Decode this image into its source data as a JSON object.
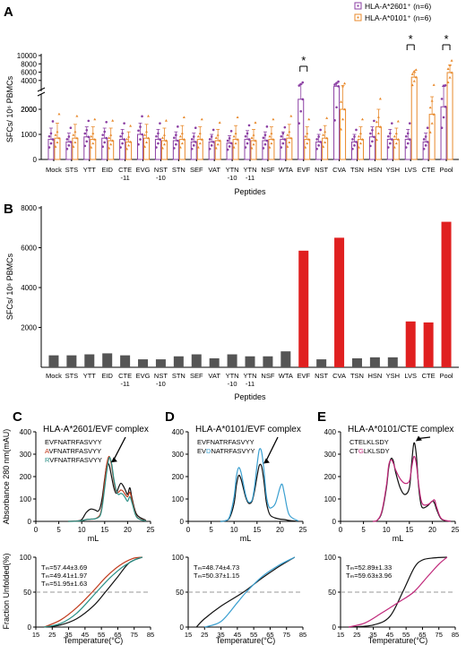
{
  "chart_data": [
    {
      "panel": "A",
      "type": "bar",
      "ylabel": "SFCs/ 10⁶ PBMCs",
      "xlabel": "Peptides",
      "yticks_lower": [
        "0",
        "1000",
        "2000"
      ],
      "yticks_upper": [
        "2000",
        "4000",
        "6000",
        "8000",
        "10000"
      ],
      "y_axis_break": [
        2500,
        1800
      ],
      "categories": [
        "Mock",
        "STS",
        "YTT",
        "EID",
        "CTE-11",
        "EVG",
        "NST-10",
        "STN",
        "SEF",
        "VAT",
        "YTN-10",
        "YTN-11",
        "NSF",
        "WTA",
        "EVF",
        "NST",
        "CVA",
        "TSN",
        "HSN",
        "YSH",
        "LVS",
        "CTE",
        "Pool"
      ],
      "category_lines": [
        [
          "Mock"
        ],
        [
          "STS"
        ],
        [
          "YTT"
        ],
        [
          "EID"
        ],
        [
          "CTE",
          "-11"
        ],
        [
          "EVG"
        ],
        [
          "NST",
          "-10"
        ],
        [
          "STN"
        ],
        [
          "SEF"
        ],
        [
          "VAT"
        ],
        [
          "YTN",
          "-10"
        ],
        [
          "YTN",
          "-11"
        ],
        [
          "NSF"
        ],
        [
          "WTA"
        ],
        [
          "EVF"
        ],
        [
          "NST"
        ],
        [
          "CVA"
        ],
        [
          "TSN"
        ],
        [
          "HSN"
        ],
        [
          "YSH"
        ],
        [
          "LVS"
        ],
        [
          "CTE"
        ],
        [
          "Pool"
        ]
      ],
      "series": [
        {
          "name": "HLA-A*2601⁺ (n=6)",
          "color": "#8b3fa3",
          "values": [
            800,
            700,
            900,
            850,
            800,
            1000,
            800,
            750,
            700,
            700,
            650,
            800,
            750,
            800,
            2400,
            700,
            2600,
            700,
            900,
            800,
            800,
            700,
            2100
          ],
          "errors": [
            450,
            350,
            400,
            400,
            400,
            450,
            400,
            350,
            350,
            300,
            300,
            350,
            350,
            300,
            700,
            300,
            700,
            300,
            400,
            400,
            400,
            350,
            450
          ]
        },
        {
          "name": "HLA-A*0101⁺ (n=6)",
          "color": "#e8892b",
          "values": [
            850,
            850,
            800,
            750,
            700,
            850,
            750,
            800,
            800,
            750,
            800,
            750,
            800,
            850,
            800,
            850,
            2000,
            800,
            1300,
            800,
            4800,
            1800,
            5900
          ],
          "errors": [
            600,
            550,
            500,
            500,
            400,
            550,
            500,
            550,
            500,
            450,
            550,
            450,
            500,
            550,
            500,
            500,
            800,
            500,
            700,
            450,
            1100,
            700,
            1800
          ]
        }
      ],
      "significance": [
        {
          "pair": [
            "EVF",
            "EVF"
          ],
          "label": "*"
        },
        {
          "pair": [
            "LVS",
            "LVS"
          ],
          "label": "*"
        },
        {
          "pair": [
            "Pool",
            "Pool"
          ],
          "label": "*"
        }
      ],
      "legend_position": "top-right"
    },
    {
      "panel": "B",
      "type": "bar",
      "ylabel": "SFCs/ 10⁶ PBMCs",
      "xlabel": "Peptides",
      "ylim": [
        0,
        8000
      ],
      "yticks": [
        2000,
        4000,
        6000,
        8000
      ],
      "categories": [
        "Mock",
        "STS",
        "YTT",
        "EID",
        "CTE-11",
        "EVG",
        "NST-10",
        "STN",
        "SEF",
        "VAT",
        "YTN-10",
        "YTN-11",
        "NSF",
        "WTA",
        "EVF",
        "NST",
        "CVA",
        "TSN",
        "HSN",
        "YSH",
        "LVS",
        "CTE",
        "Pool"
      ],
      "values": [
        600,
        600,
        650,
        700,
        600,
        400,
        400,
        550,
        650,
        450,
        650,
        550,
        550,
        800,
        5850,
        400,
        6500,
        450,
        500,
        500,
        2300,
        2250,
        7300
      ],
      "highlight": [
        "EVF",
        "CVA",
        "LVS",
        "CTE",
        "Pool"
      ],
      "colors": {
        "default": "#555555",
        "highlight": "#e02020"
      }
    },
    {
      "panel": "C",
      "type": "line",
      "title": "HLA-A*2601/EVF complex",
      "ylabel": "Absorbance 280 nm(mAU)",
      "xlabel": "mL",
      "xlim": [
        0,
        25
      ],
      "ylim": [
        0,
        400
      ],
      "xticks": [
        0,
        5,
        10,
        15,
        20,
        25
      ],
      "yticks": [
        0,
        100,
        200,
        300,
        400
      ],
      "series": [
        {
          "name": "EVFNATRFASVYY",
          "color": "#111111",
          "x": [
            7,
            9,
            10,
            11,
            12,
            13,
            13.5,
            14,
            14.5,
            15,
            15.5,
            16,
            16.5,
            17,
            17.5,
            18,
            18.5,
            19,
            19.5,
            20,
            20.5,
            21,
            22,
            24
          ],
          "y": [
            0,
            2,
            8,
            40,
            55,
            50,
            45,
            60,
            110,
            190,
            255,
            250,
            200,
            150,
            125,
            150,
            170,
            160,
            140,
            120,
            150,
            100,
            30,
            5
          ]
        },
        {
          "name": "AVFNATRFASVYY",
          "color": "#c0391b",
          "x": [
            7,
            9,
            10,
            11,
            12,
            13,
            14,
            14.5,
            15,
            15.5,
            16,
            16.5,
            17,
            17.5,
            18,
            18.5,
            19,
            19.5,
            20,
            20.5,
            21,
            22,
            24
          ],
          "y": [
            0,
            1,
            3,
            8,
            10,
            12,
            30,
            80,
            180,
            260,
            290,
            250,
            180,
            135,
            130,
            140,
            135,
            120,
            110,
            130,
            90,
            20,
            3
          ]
        },
        {
          "name": "RVFNATRFASVYY",
          "color": "#2a8f86",
          "x": [
            7,
            9,
            10,
            11,
            12,
            13,
            14,
            14.5,
            15,
            15.5,
            16,
            16.5,
            17,
            17.5,
            18,
            18.5,
            19,
            19.5,
            20,
            20.5,
            21,
            22,
            24
          ],
          "y": [
            0,
            1,
            3,
            8,
            10,
            12,
            25,
            70,
            150,
            230,
            285,
            260,
            190,
            140,
            120,
            125,
            120,
            105,
            90,
            110,
            80,
            18,
            2
          ]
        }
      ],
      "label_highlight": [
        null,
        {
          "index": 0,
          "color": "#c0391b"
        },
        {
          "index": 0,
          "color": "#2a8f86"
        }
      ]
    },
    {
      "panel": "D",
      "type": "line",
      "title": "HLA-A*0101/EVF complex",
      "xlabel": "mL",
      "xlim": [
        0,
        25
      ],
      "ylim": [
        0,
        400
      ],
      "xticks": [
        0,
        5,
        10,
        15,
        20,
        25
      ],
      "yticks": [
        0,
        100,
        200,
        300,
        400
      ],
      "series": [
        {
          "name": "EVFNATRFASVYY",
          "color": "#111111",
          "x": [
            7,
            8,
            9,
            10,
            10.5,
            11,
            11.5,
            12,
            12.5,
            13,
            13.5,
            14,
            14.5,
            15,
            15.5,
            16,
            16.5,
            17,
            17.5,
            18,
            19,
            20,
            21,
            22,
            24
          ],
          "y": [
            0,
            2,
            15,
            80,
            160,
            205,
            190,
            150,
            110,
            85,
            80,
            95,
            140,
            200,
            250,
            245,
            180,
            90,
            45,
            25,
            15,
            10,
            8,
            4,
            0
          ]
        },
        {
          "name": "EVDNATRFASVYY",
          "color": "#3a9fd0",
          "x": [
            7,
            8,
            9,
            10,
            10.5,
            11,
            11.5,
            12,
            12.5,
            13,
            13.5,
            14,
            14.5,
            15,
            15.5,
            16,
            16.5,
            17,
            17.5,
            18,
            19,
            20,
            20.5,
            21,
            22,
            24
          ],
          "y": [
            0,
            2,
            20,
            110,
            200,
            240,
            220,
            170,
            120,
            90,
            85,
            100,
            160,
            250,
            320,
            310,
            230,
            120,
            70,
            60,
            80,
            150,
            165,
            120,
            30,
            2
          ]
        }
      ],
      "label_highlight": [
        null,
        {
          "index": 2,
          "color": "#3a9fd0"
        }
      ]
    },
    {
      "panel": "E",
      "type": "line",
      "title": "HLA-A*0101/CTE complex",
      "xlabel": "mL",
      "xlim": [
        0,
        25
      ],
      "ylim": [
        0,
        400
      ],
      "xticks": [
        0,
        5,
        10,
        15,
        20,
        25
      ],
      "yticks": [
        0,
        100,
        200,
        300,
        400
      ],
      "series": [
        {
          "name": "CTELKLSDY",
          "color": "#111111",
          "x": [
            7,
            8,
            9,
            10,
            10.5,
            11,
            11.5,
            12,
            13,
            14,
            15,
            15.5,
            16,
            16.5,
            17,
            17.5,
            18,
            19,
            20,
            20.5,
            21,
            22,
            24
          ],
          "y": [
            0,
            5,
            40,
            150,
            240,
            280,
            270,
            220,
            150,
            120,
            150,
            260,
            350,
            300,
            160,
            80,
            60,
            70,
            90,
            80,
            50,
            10,
            0
          ]
        },
        {
          "name": "CTGLKLSDY",
          "color": "#c0287a",
          "x": [
            7,
            8,
            9,
            10,
            10.5,
            11,
            11.5,
            12,
            13,
            14,
            15,
            15.5,
            16,
            16.5,
            17,
            17.5,
            18,
            19,
            20,
            20.5,
            21,
            22,
            24
          ],
          "y": [
            0,
            5,
            45,
            160,
            250,
            275,
            260,
            230,
            190,
            170,
            180,
            240,
            290,
            260,
            170,
            100,
            75,
            75,
            90,
            95,
            60,
            12,
            0
          ]
        }
      ],
      "label_highlight": [
        null,
        {
          "index": 2,
          "color": "#c0287a"
        }
      ]
    },
    {
      "panel": "C-bottom",
      "type": "line",
      "ylabel": "Fraction Unfolded(%)",
      "xlabel": "Temperature(°C)",
      "xlim": [
        15,
        85
      ],
      "ylim": [
        0,
        100
      ],
      "xticks": [
        15,
        25,
        35,
        45,
        55,
        65,
        75,
        85
      ],
      "yticks": [
        0,
        50,
        100
      ],
      "reference_line": 50,
      "annotations": [
        {
          "text": "Tₘ=57.44±3.69",
          "color": "#111111"
        },
        {
          "text": "Tₘ=49.41±1.97",
          "color": "#c0391b"
        },
        {
          "text": "Tₘ=51.95±1.63",
          "color": "#2a8f86"
        }
      ],
      "series": [
        {
          "color": "#111111",
          "x": [
            20,
            30,
            40,
            50,
            57.4,
            65,
            72,
            80
          ],
          "y": [
            0,
            3,
            12,
            30,
            50,
            72,
            92,
            100
          ]
        },
        {
          "color": "#c0391b",
          "x": [
            20,
            30,
            40,
            49.4,
            58,
            66,
            74,
            80
          ],
          "y": [
            0,
            10,
            28,
            50,
            72,
            88,
            98,
            100
          ]
        },
        {
          "color": "#2a8f86",
          "x": [
            20,
            30,
            40,
            52,
            60,
            68,
            76,
            80
          ],
          "y": [
            0,
            5,
            20,
            50,
            70,
            86,
            97,
            100
          ]
        }
      ]
    },
    {
      "panel": "D-bottom",
      "type": "line",
      "xlabel": "Temperature(°C)",
      "xlim": [
        15,
        85
      ],
      "ylim": [
        0,
        100
      ],
      "xticks": [
        15,
        25,
        35,
        45,
        55,
        65,
        75,
        85
      ],
      "yticks": [
        0,
        50,
        100
      ],
      "reference_line": 50,
      "annotations": [
        {
          "text": "Tₘ=48.74±4.73",
          "color": "#111111"
        },
        {
          "text": "Tₘ=50.37±1.15",
          "color": "#3a9fd0"
        }
      ],
      "series": [
        {
          "color": "#111111",
          "x": [
            20,
            25,
            35,
            48.7,
            60,
            70,
            80
          ],
          "y": [
            0,
            12,
            30,
            50,
            70,
            86,
            100
          ]
        },
        {
          "color": "#3a9fd0",
          "x": [
            25,
            35,
            45,
            50.4,
            60,
            70,
            80
          ],
          "y": [
            0,
            8,
            35,
            50,
            72,
            88,
            100
          ]
        }
      ]
    },
    {
      "panel": "E-bottom",
      "type": "line",
      "xlabel": "Temperature(°C)",
      "xlim": [
        15,
        85
      ],
      "ylim": [
        0,
        100
      ],
      "xticks": [
        15,
        25,
        35,
        45,
        55,
        65,
        75,
        85
      ],
      "yticks": [
        0,
        50,
        100
      ],
      "reference_line": 50,
      "annotations": [
        {
          "text": "Tₘ=52.89±1.33",
          "color": "#111111"
        },
        {
          "text": "Tₘ=59.63±3.96",
          "color": "#c0287a"
        }
      ],
      "series": [
        {
          "color": "#111111",
          "x": [
            20,
            35,
            45,
            52.9,
            60,
            65,
            72,
            80
          ],
          "y": [
            0,
            3,
            15,
            50,
            85,
            96,
            99,
            100
          ]
        },
        {
          "color": "#c0287a",
          "x": [
            20,
            30,
            40,
            50,
            59.6,
            68,
            75,
            80
          ],
          "y": [
            0,
            6,
            20,
            35,
            50,
            72,
            90,
            100
          ]
        }
      ]
    }
  ]
}
